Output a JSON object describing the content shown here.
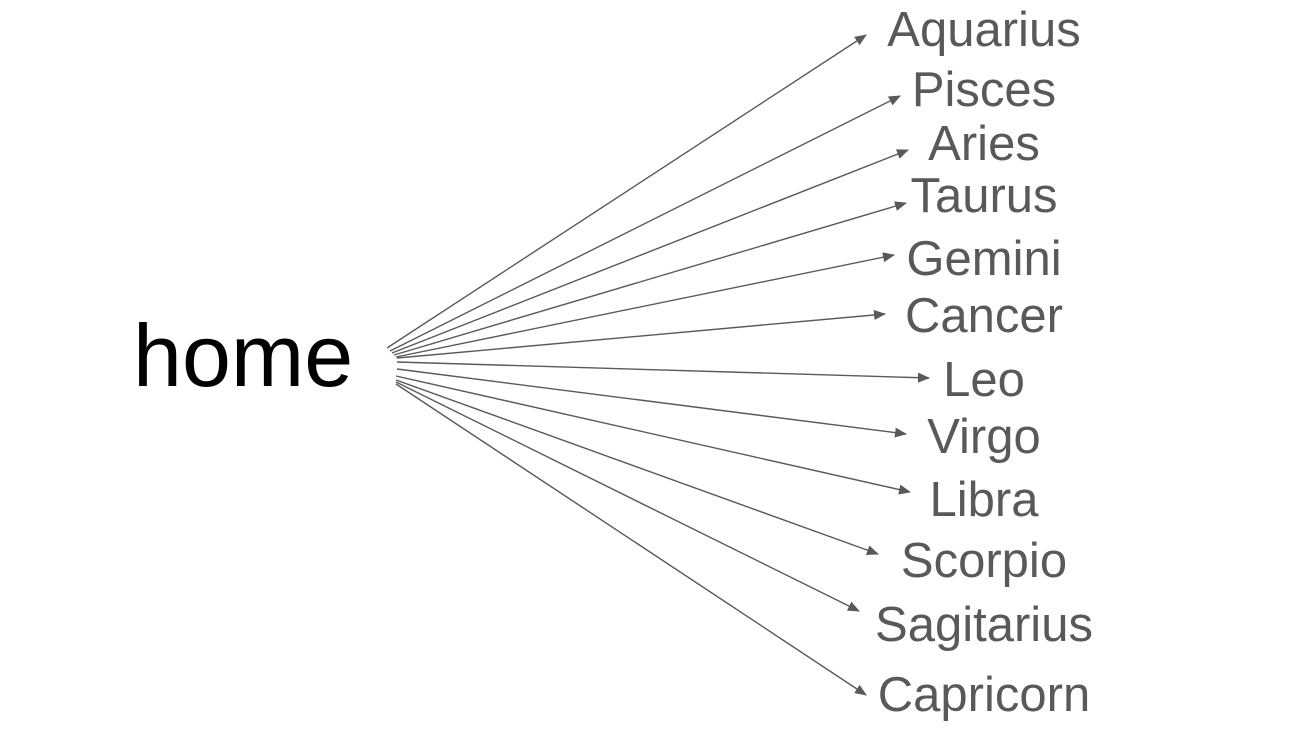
{
  "root": {
    "label": "home"
  },
  "colors": {
    "root_text": "#000000",
    "node_text": "#595959",
    "arrow": "#595959"
  },
  "nodes": [
    {
      "label": "Aquarius"
    },
    {
      "label": "Pisces"
    },
    {
      "label": "Aries"
    },
    {
      "label": "Taurus"
    },
    {
      "label": "Gemini"
    },
    {
      "label": "Cancer"
    },
    {
      "label": "Leo"
    },
    {
      "label": "Virgo"
    },
    {
      "label": "Libra"
    },
    {
      "label": "Scorpio"
    },
    {
      "label": "Sagitarius"
    },
    {
      "label": "Capricorn"
    }
  ]
}
